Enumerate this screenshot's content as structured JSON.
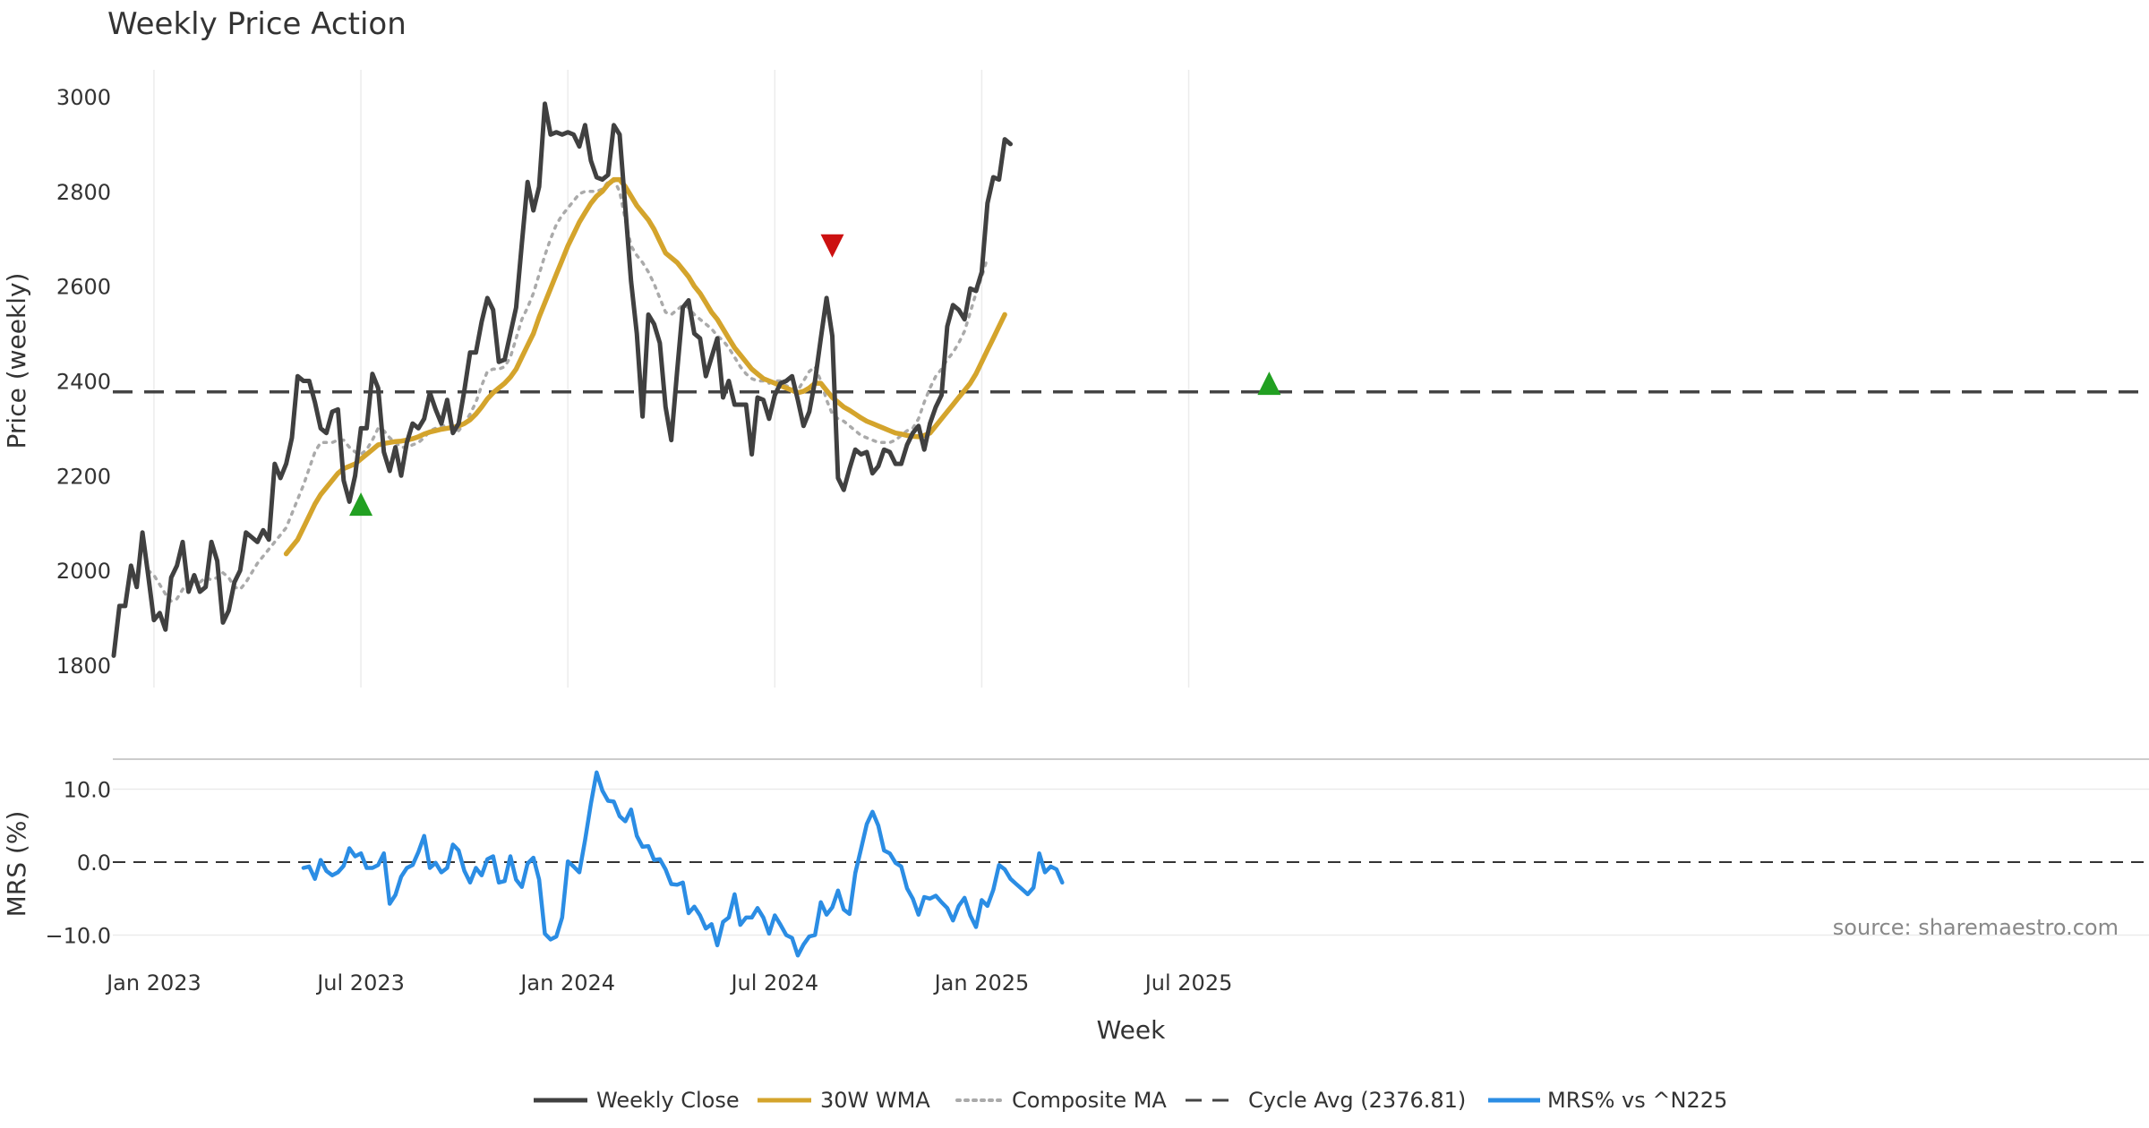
{
  "chart_data": {
    "type": "line",
    "title": "Weekly Price Action",
    "xlabel": "Week",
    "source_note": "source: sharemaestro.com",
    "x_ticks": [
      "Jan 2023",
      "Jul 2023",
      "Jan 2024",
      "Jul 2024",
      "Jan 2025",
      "Jul 2025"
    ],
    "x_tick_weeks": [
      7,
      43,
      79,
      115,
      151,
      187
    ],
    "price_panel": {
      "ylabel": "Price (weekly)",
      "ylim": [
        1790,
        3050
      ],
      "yticks": [
        1800,
        2000,
        2200,
        2400,
        2600,
        2800,
        3000
      ],
      "grid": true
    },
    "mrs_panel": {
      "ylabel": "MRS (%)",
      "ylim": [
        -13.5,
        15
      ],
      "yticks": [
        10.0,
        0.0,
        -10.0
      ],
      "ytick_labels": [
        "10.0",
        "0.0",
        "−10.0"
      ],
      "grid": true
    },
    "series": [
      {
        "name": "Weekly Close",
        "color": "#404040",
        "start_week": 0,
        "values": [
          1820,
          1925,
          1925,
          2010,
          1965,
          2080,
          1990,
          1895,
          1910,
          1875,
          1985,
          2010,
          2060,
          1955,
          1990,
          1955,
          1965,
          2060,
          2020,
          1890,
          1915,
          1975,
          2000,
          2080,
          2070,
          2060,
          2085,
          2065,
          2225,
          2195,
          2225,
          2280,
          2410,
          2400,
          2400,
          2355,
          2300,
          2290,
          2335,
          2340,
          2190,
          2145,
          2200,
          2300,
          2300,
          2415,
          2385,
          2250,
          2210,
          2260,
          2200,
          2270,
          2310,
          2300,
          2320,
          2375,
          2340,
          2310,
          2360,
          2290,
          2310,
          2380,
          2460,
          2460,
          2525,
          2575,
          2550,
          2440,
          2445,
          2500,
          2555,
          2690,
          2820,
          2760,
          2810,
          2985,
          2920,
          2925,
          2920,
          2925,
          2920,
          2895,
          2940,
          2865,
          2830,
          2825,
          2835,
          2940,
          2920,
          2765,
          2610,
          2500,
          2325,
          2540,
          2520,
          2480,
          2345,
          2275,
          2420,
          2555,
          2570,
          2500,
          2490,
          2410,
          2450,
          2490,
          2365,
          2400,
          2350,
          2350,
          2350,
          2245,
          2365,
          2360,
          2320,
          2370,
          2395,
          2400,
          2410,
          2360,
          2305,
          2335,
          2400,
          2490,
          2575,
          2495,
          2195,
          2170,
          2215,
          2255,
          2245,
          2250,
          2205,
          2220,
          2255,
          2250,
          2225,
          2225,
          2265,
          2290,
          2305,
          2255,
          2310,
          2345,
          2370,
          2515,
          2560,
          2550,
          2530,
          2595,
          2590,
          2630,
          2775,
          2830,
          2825,
          2910,
          2900
        ]
      },
      {
        "name": "30W WMA",
        "color": "#d4a42c",
        "start_week": 30,
        "values": [
          2035,
          2050,
          2065,
          2090,
          2115,
          2140,
          2160,
          2175,
          2190,
          2205,
          2215,
          2220,
          2225,
          2235,
          2245,
          2255,
          2265,
          2268,
          2270,
          2272,
          2273,
          2275,
          2278,
          2282,
          2288,
          2292,
          2295,
          2298,
          2300,
          2302,
          2305,
          2310,
          2318,
          2330,
          2345,
          2362,
          2375,
          2385,
          2395,
          2408,
          2425,
          2450,
          2475,
          2500,
          2535,
          2565,
          2595,
          2625,
          2655,
          2685,
          2710,
          2735,
          2755,
          2775,
          2790,
          2800,
          2815,
          2825,
          2825,
          2810,
          2790,
          2770,
          2755,
          2740,
          2720,
          2695,
          2670,
          2660,
          2650,
          2635,
          2620,
          2600,
          2585,
          2565,
          2545,
          2530,
          2510,
          2490,
          2470,
          2455,
          2440,
          2425,
          2415,
          2405,
          2400,
          2395,
          2390,
          2385,
          2380,
          2375,
          2378,
          2385,
          2395,
          2395,
          2380,
          2365,
          2355,
          2345,
          2338,
          2330,
          2322,
          2315,
          2310,
          2305,
          2300,
          2295,
          2290,
          2288,
          2285,
          2283,
          2282,
          2285,
          2290,
          2305,
          2320,
          2335,
          2350,
          2365,
          2380,
          2395,
          2415,
          2440,
          2465,
          2490,
          2515,
          2540
        ]
      },
      {
        "name": "Composite MA",
        "color": "#aaaaaa",
        "start_week": 6,
        "values": [
          2000,
          1990,
          1970,
          1950,
          1935,
          1940,
          1960,
          1975,
          1985,
          1975,
          1985,
          1980,
          1985,
          1995,
          1985,
          1965,
          1960,
          1975,
          1995,
          2015,
          2030,
          2045,
          2060,
          2075,
          2090,
          2120,
          2150,
          2180,
          2215,
          2250,
          2270,
          2270,
          2270,
          2275,
          2275,
          2260,
          2250,
          2245,
          2255,
          2275,
          2300,
          2295,
          2280,
          2270,
          2260,
          2260,
          2265,
          2270,
          2280,
          2295,
          2300,
          2305,
          2305,
          2300,
          2295,
          2310,
          2330,
          2355,
          2390,
          2420,
          2425,
          2425,
          2430,
          2450,
          2490,
          2530,
          2555,
          2585,
          2625,
          2665,
          2700,
          2730,
          2750,
          2765,
          2780,
          2795,
          2800,
          2800,
          2800,
          2805,
          2820,
          2825,
          2800,
          2740,
          2685,
          2665,
          2650,
          2630,
          2605,
          2575,
          2545,
          2540,
          2550,
          2560,
          2555,
          2540,
          2530,
          2520,
          2510,
          2495,
          2485,
          2470,
          2450,
          2430,
          2415,
          2405,
          2400,
          2400,
          2395,
          2400,
          2400,
          2390,
          2385,
          2380,
          2400,
          2420,
          2430,
          2400,
          2360,
          2330,
          2320,
          2315,
          2305,
          2295,
          2285,
          2280,
          2275,
          2270,
          2270,
          2270,
          2275,
          2285,
          2295,
          2300,
          2320,
          2355,
          2385,
          2410,
          2425,
          2445,
          2460,
          2480,
          2505,
          2545,
          2585,
          2620,
          2660
        ]
      },
      {
        "name": "Cycle Avg (2376.81)",
        "color": "#444444",
        "value": 2376.81
      },
      {
        "name": "MRS% vs ^N225",
        "color": "#2b8de4",
        "start_week": 33,
        "values": [
          -0.8,
          -0.6,
          -2.3,
          0.3,
          -1.2,
          -1.8,
          -1.4,
          -0.5,
          1.9,
          0.8,
          1.2,
          -0.8,
          -0.8,
          -0.4,
          1.2,
          -5.7,
          -4.5,
          -2.0,
          -0.8,
          -0.4,
          1.4,
          3.6,
          -0.8,
          -0.1,
          -1.4,
          -0.8,
          2.4,
          1.6,
          -1.2,
          -2.8,
          -0.8,
          -1.8,
          0.4,
          0.8,
          -2.8,
          -2.6,
          0.8,
          -2.4,
          -3.4,
          -0.2,
          0.6,
          -2.4,
          -9.8,
          -10.6,
          -10.2,
          -7.6,
          0.1,
          -0.6,
          -1.4,
          3.0,
          8.0,
          12.3,
          9.8,
          8.4,
          8.3,
          6.3,
          5.6,
          7.2,
          3.6,
          2.1,
          2.2,
          0.3,
          0.4,
          -1.0,
          -3.0,
          -3.1,
          -2.8,
          -7.0,
          -6.1,
          -7.3,
          -9.1,
          -8.5,
          -11.4,
          -8.2,
          -7.6,
          -4.4,
          -8.6,
          -7.6,
          -7.6,
          -6.3,
          -7.6,
          -9.8,
          -7.3,
          -8.6,
          -10.0,
          -10.4,
          -12.8,
          -11.3,
          -10.2,
          -10.0,
          -5.5,
          -7.2,
          -6.2,
          -3.9,
          -6.5,
          -7.1,
          -1.5,
          1.8,
          5.2,
          6.9,
          5.0,
          1.6,
          1.2,
          -0.1,
          -0.6,
          -3.6,
          -5.0,
          -7.2,
          -4.8,
          -5.0,
          -4.6,
          -5.5,
          -6.3,
          -8.0,
          -6.0,
          -4.9,
          -7.3,
          -8.9,
          -5.2,
          -6.0,
          -3.8,
          -0.4,
          -1.0,
          -2.3,
          -3.0,
          -3.7,
          -4.4,
          -3.5,
          1.2,
          -1.4,
          -0.6,
          -1.0,
          -2.8
        ]
      }
    ],
    "signals": [
      {
        "type": "buy",
        "week": 43,
        "price": 2140,
        "color": "#22a022"
      },
      {
        "type": "sell",
        "week": 125,
        "price": 2685,
        "color": "#cc1111"
      },
      {
        "type": "buy",
        "week": 201,
        "price": 2395,
        "color": "#22a022"
      }
    ],
    "legend": {
      "placement": "bottom-center",
      "entries": [
        {
          "label": "Weekly Close",
          "style": "solid",
          "color": "#404040"
        },
        {
          "label": "30W WMA",
          "style": "solid",
          "color": "#d4a42c"
        },
        {
          "label": "Composite MA",
          "style": "dotted",
          "color": "#aaaaaa"
        },
        {
          "label": "Cycle Avg (2376.81)",
          "style": "dashed",
          "color": "#444444"
        },
        {
          "label": "MRS% vs ^N225",
          "style": "solid",
          "color": "#2b8de4"
        }
      ]
    }
  }
}
